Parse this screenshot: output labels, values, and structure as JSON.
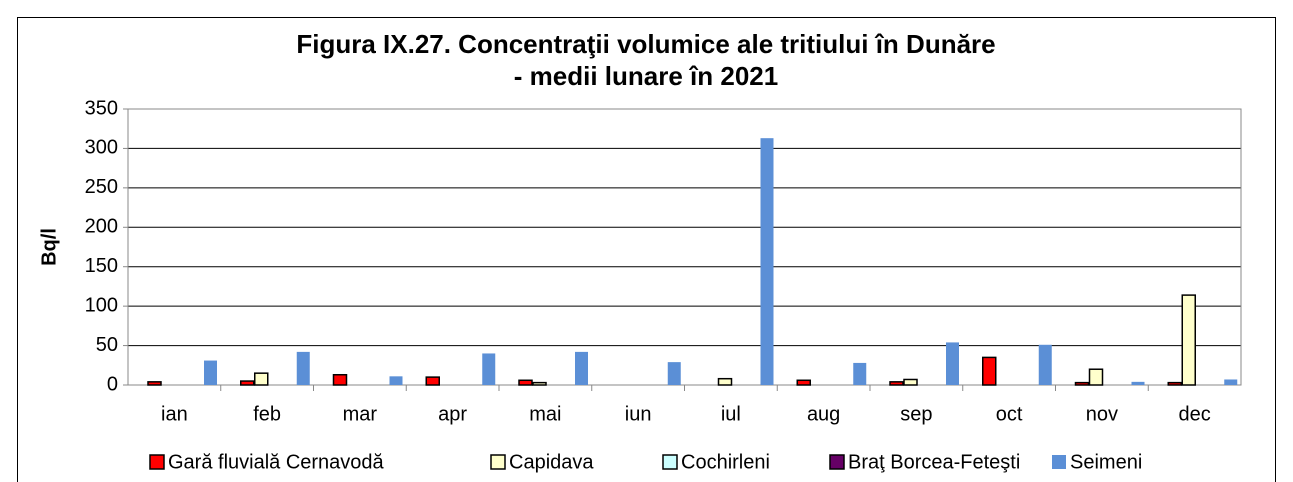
{
  "chart_data": {
    "type": "bar",
    "title": [
      "Figura IX.27. Concentraţii volumice ale tritiului în Dunăre",
      "- medii lunare în 2021"
    ],
    "ylabel": "Bq/l",
    "categories": [
      "ian",
      "feb",
      "mar",
      "apr",
      "mai",
      "iun",
      "iul",
      "aug",
      "sep",
      "oct",
      "nov",
      "dec"
    ],
    "series": [
      {
        "name": "Gară fluvială Cernavodă",
        "color": "#ff0000",
        "values": [
          4,
          5,
          13,
          10,
          6,
          null,
          null,
          6,
          4,
          35,
          3,
          3
        ]
      },
      {
        "name": "Capidava",
        "color": "#ffffcc",
        "values": [
          null,
          15,
          null,
          null,
          3,
          null,
          8,
          null,
          7,
          null,
          20,
          114
        ]
      },
      {
        "name": "Cochirleni",
        "color": "#ccffff",
        "values": [
          null,
          null,
          null,
          null,
          null,
          null,
          null,
          null,
          null,
          null,
          null,
          null
        ]
      },
      {
        "name": "Braţ Borcea-Feteşti",
        "color": "#660066",
        "values": [
          null,
          null,
          null,
          null,
          null,
          null,
          null,
          null,
          null,
          null,
          null,
          null
        ]
      },
      {
        "name": "Seimeni",
        "color": "#5b8fd6",
        "values": [
          31,
          42,
          11,
          40,
          42,
          29,
          313,
          28,
          54,
          51,
          4,
          7
        ]
      }
    ],
    "ylim": [
      0,
      350
    ],
    "yticks": [
      0,
      50,
      100,
      150,
      200,
      250,
      300,
      350
    ],
    "grid": true,
    "legend": "bottom"
  }
}
